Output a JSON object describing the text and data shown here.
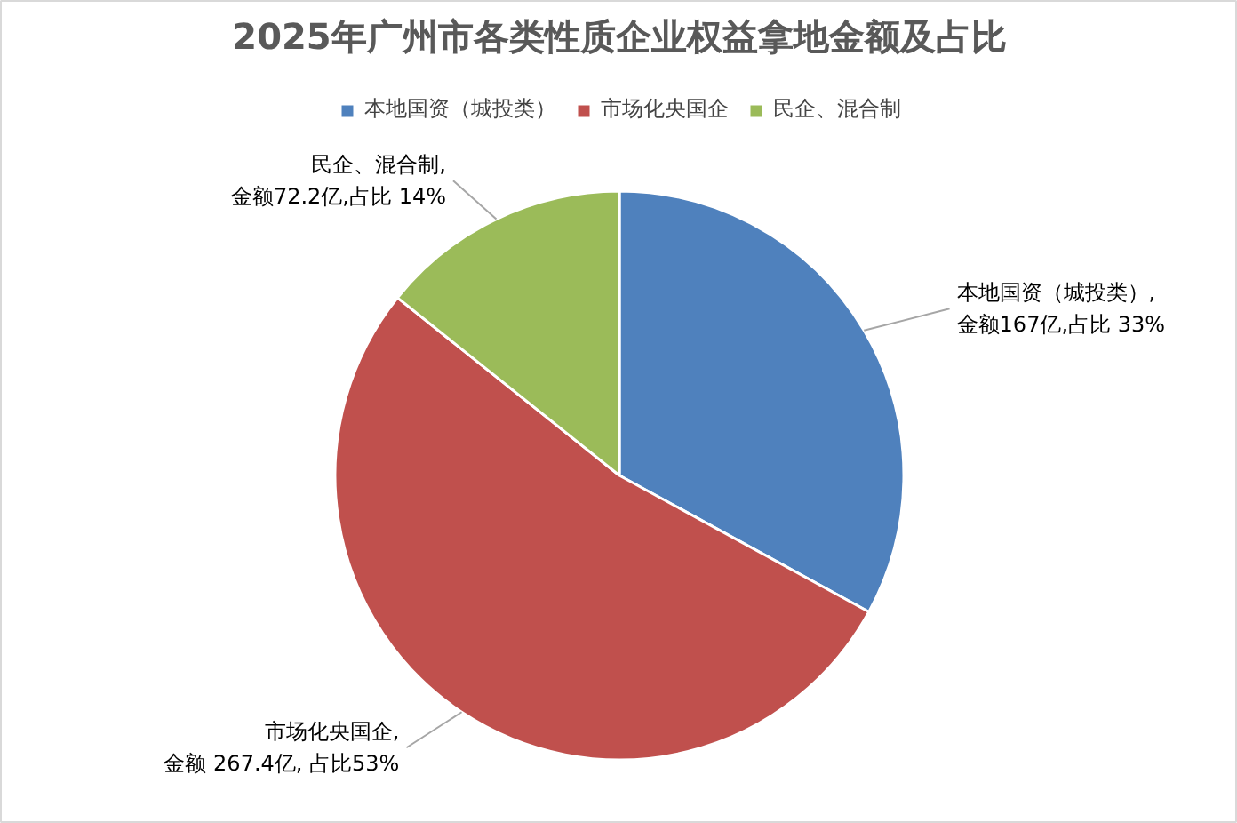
{
  "chart_data": {
    "type": "pie",
    "title": "2025年广州市各类性质企业权益拿地金额及占比",
    "categories": [
      "本地国资（城投类）",
      "市场化央国企",
      "民企、混合制"
    ],
    "values": [
      167,
      267.4,
      72.2
    ],
    "colors": [
      "#4f81bd",
      "#c0504d",
      "#9bbb59"
    ],
    "value_labels": [
      ",\n金额167亿,占比 33%",
      ",\n金额 267.4亿, 占比53%",
      ",\n金额72.2亿,占比 14%"
    ],
    "legend": "top"
  }
}
